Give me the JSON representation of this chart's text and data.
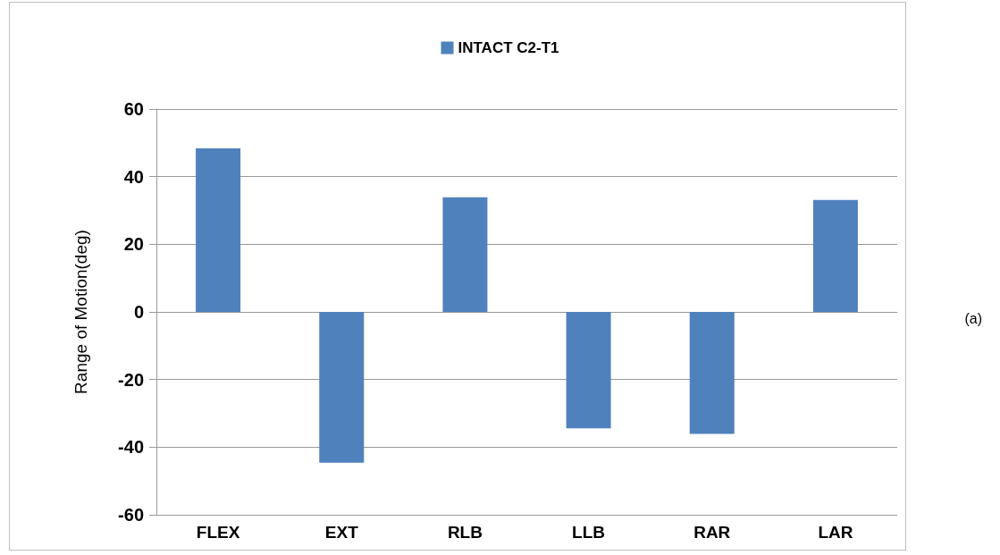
{
  "chart_data": {
    "type": "bar",
    "ylabel": "Range of Motion(deg)",
    "categories": [
      "FLEX",
      "EXT",
      "RLB",
      "LLB",
      "RAR",
      "LAR"
    ],
    "series": [
      {
        "name": "INTACT C2-T1",
        "color": "#4f81bd",
        "values": [
          48.4,
          -44.6,
          33.9,
          -34.4,
          -36.1,
          33.1
        ]
      }
    ],
    "ylim": [
      -60,
      60
    ],
    "yticks": [
      -60,
      -40,
      -20,
      0,
      20,
      40,
      60
    ],
    "grid": "y",
    "legend": "top",
    "annotations": [
      "(a)"
    ]
  }
}
